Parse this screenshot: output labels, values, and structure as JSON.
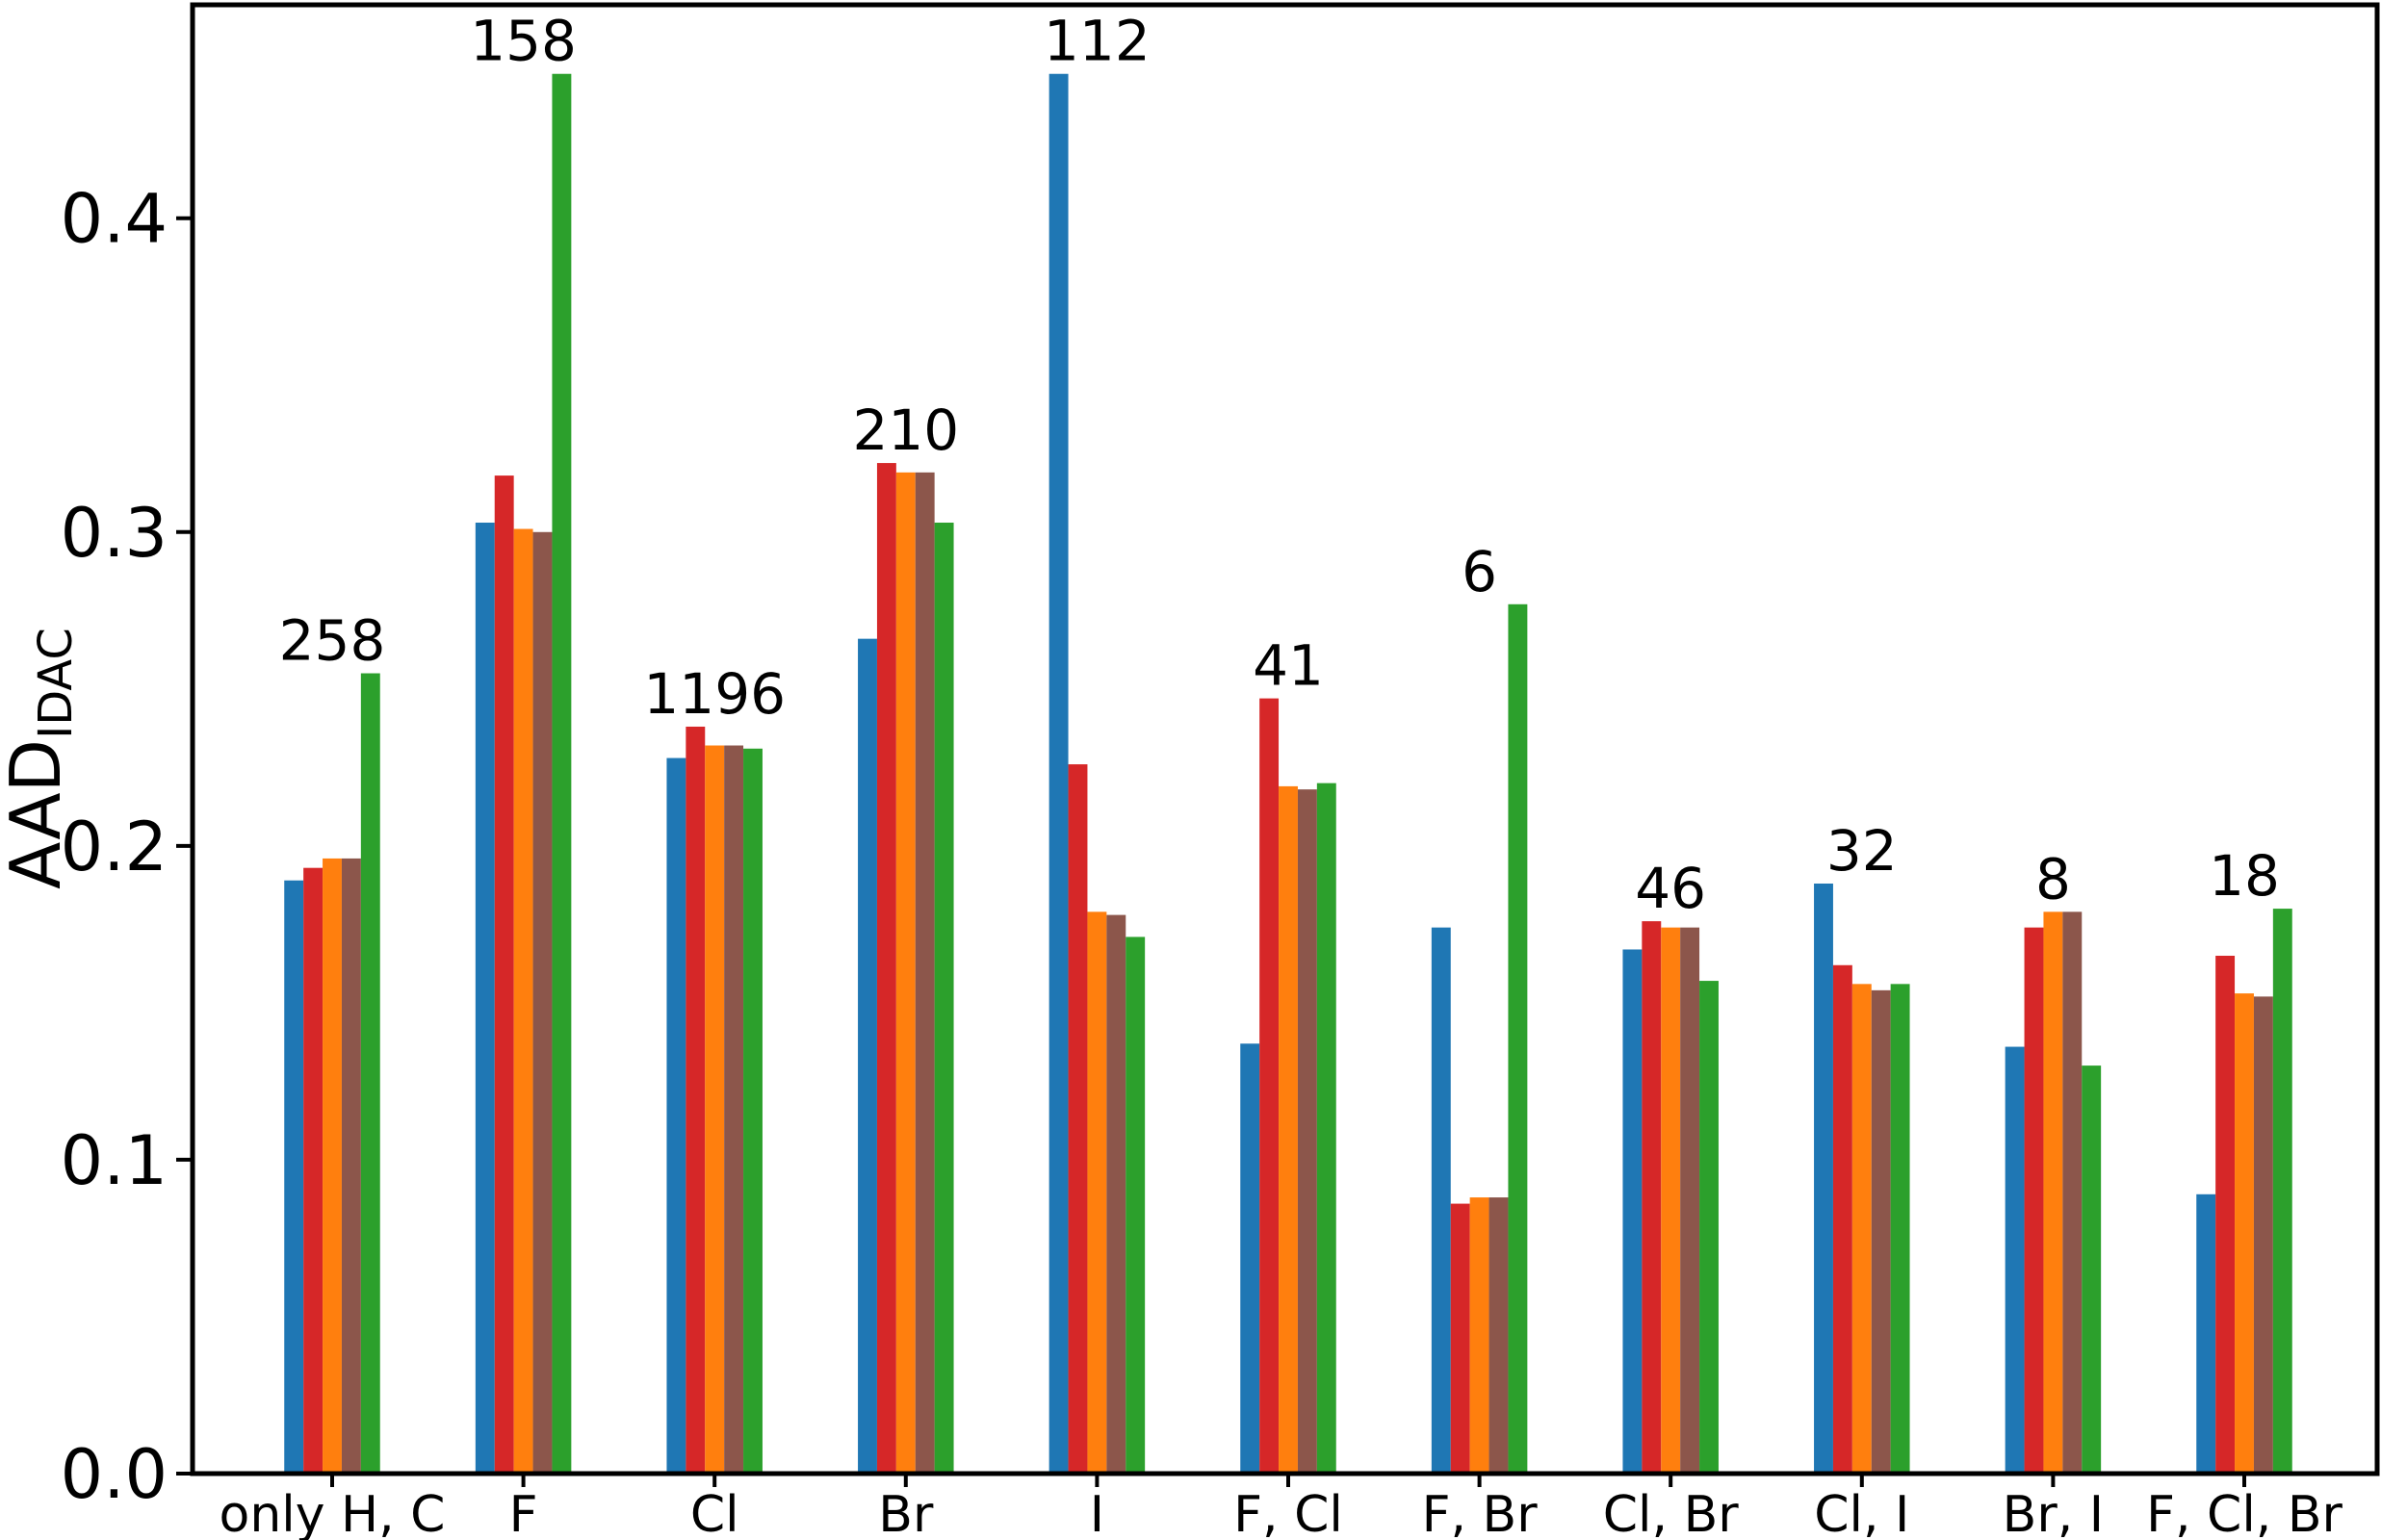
{
  "chart_data": {
    "type": "bar",
    "title": "",
    "xlabel": "",
    "ylabel": "AAD",
    "ylabel_subscript": "IDAC",
    "ylim": [
      0.0,
      0.468
    ],
    "yticks": [
      0.0,
      0.1,
      0.2,
      0.3,
      0.4
    ],
    "ytick_labels": [
      "0.0",
      "0.1",
      "0.2",
      "0.3",
      "0.4"
    ],
    "grid": false,
    "legend": "none",
    "categories": [
      "only H, C",
      "F",
      "Cl",
      "Br",
      "I",
      "F, Cl",
      "F, Br",
      "Cl, Br",
      "Cl, I",
      "Br, I",
      "F, Cl, Br"
    ],
    "annotations": [
      "258",
      "158",
      "1196",
      "210",
      "112",
      "41",
      "6",
      "46",
      "32",
      "8",
      "18"
    ],
    "series": [
      {
        "color": "#1f77b4",
        "values": [
          0.189,
          0.303,
          0.228,
          0.266,
          0.446,
          0.137,
          0.174,
          0.167,
          0.188,
          0.136,
          0.089
        ]
      },
      {
        "color": "#d62728",
        "values": [
          0.193,
          0.318,
          0.238,
          0.322,
          0.226,
          0.247,
          0.086,
          0.176,
          0.162,
          0.174,
          0.165
        ]
      },
      {
        "color": "#ff7f0e",
        "values": [
          0.196,
          0.301,
          0.232,
          0.319,
          0.179,
          0.219,
          0.088,
          0.174,
          0.156,
          0.179,
          0.153
        ]
      },
      {
        "color": "#8c564b",
        "values": [
          0.196,
          0.3,
          0.232,
          0.319,
          0.178,
          0.218,
          0.088,
          0.174,
          0.154,
          0.179,
          0.152
        ]
      },
      {
        "color": "#2ca02c",
        "values": [
          0.255,
          0.446,
          0.231,
          0.303,
          0.171,
          0.22,
          0.277,
          0.157,
          0.156,
          0.13,
          0.18
        ]
      }
    ]
  }
}
